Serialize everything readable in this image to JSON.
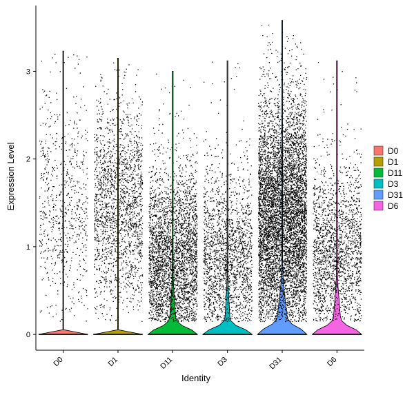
{
  "chart_data": {
    "type": "violin",
    "xlabel": "Identity",
    "ylabel": "Expression Level",
    "ylim": [
      -0.18,
      3.75
    ],
    "yticks": [
      0,
      1,
      2,
      3
    ],
    "grid": false,
    "legend_position": "right",
    "categories": [
      "D0",
      "D1",
      "D11",
      "D3",
      "D31",
      "D6"
    ],
    "series": [
      {
        "name": "D0",
        "color": "#F8766D",
        "max": 3.23,
        "nonzero_fraction": 0.12,
        "nonzero_mean": 1.45,
        "nonzero_sd": 0.65,
        "cell_density": "low"
      },
      {
        "name": "D1",
        "color": "#B79F00",
        "max": 3.15,
        "nonzero_fraction": 0.18,
        "nonzero_mean": 1.45,
        "nonzero_sd": 0.6,
        "cell_density": "medium"
      },
      {
        "name": "D11",
        "color": "#00BA38",
        "max": 3.0,
        "nonzero_fraction": 0.45,
        "nonzero_mean": 0.8,
        "nonzero_sd": 0.55,
        "cell_density": "high"
      },
      {
        "name": "D3",
        "color": "#00BFC4",
        "max": 3.12,
        "nonzero_fraction": 0.4,
        "nonzero_mean": 0.8,
        "nonzero_sd": 0.55,
        "cell_density": "medium"
      },
      {
        "name": "D31",
        "color": "#619CFF",
        "max": 3.58,
        "nonzero_fraction": 0.6,
        "nonzero_mean": 1.3,
        "nonzero_sd": 0.7,
        "cell_density": "very high"
      },
      {
        "name": "D6",
        "color": "#F564E3",
        "max": 3.12,
        "nonzero_fraction": 0.5,
        "nonzero_mean": 0.9,
        "nonzero_sd": 0.55,
        "cell_density": "medium"
      }
    ]
  }
}
